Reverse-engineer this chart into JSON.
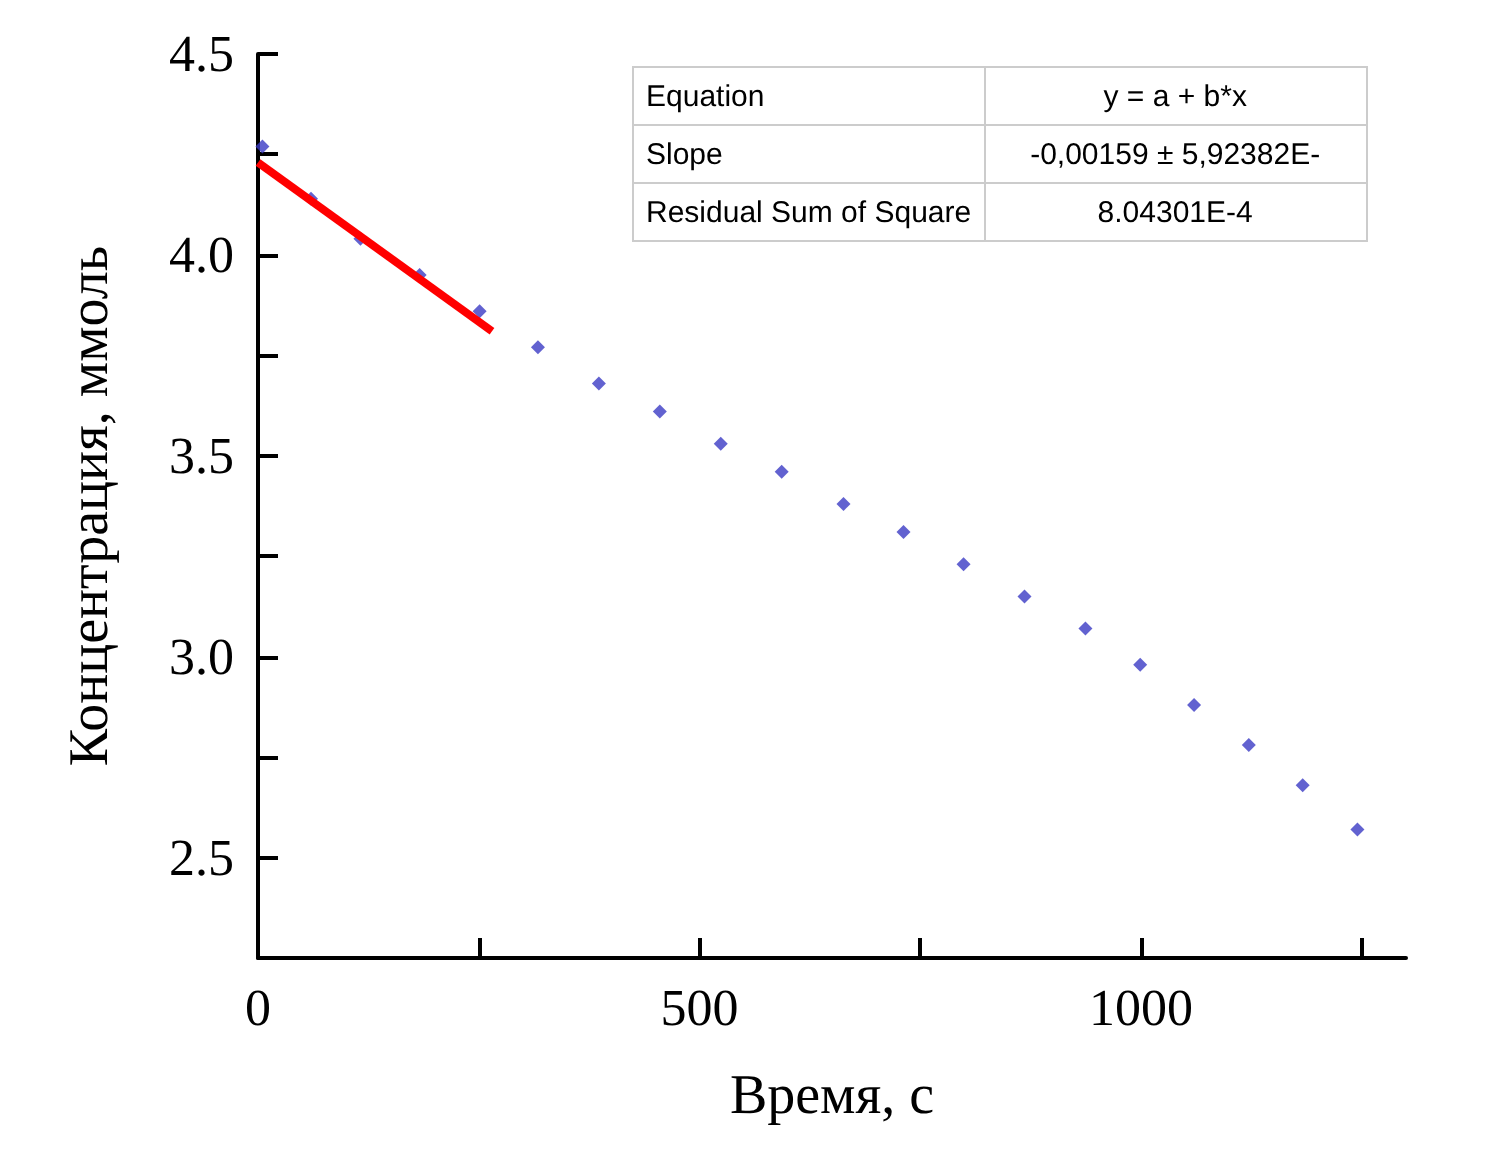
{
  "chart_data": {
    "type": "scatter",
    "xlabel": "Время, с",
    "ylabel": "Концентрация, ммоль",
    "x": [
      5,
      60,
      116,
      183,
      251,
      317,
      386,
      455,
      524,
      593,
      663,
      731,
      799,
      868,
      937,
      999,
      1060,
      1122,
      1183,
      1245
    ],
    "series": [
      {
        "color": "#3b3bc4",
        "marker": "diamond",
        "values": [
          4.27,
          4.14,
          4.04,
          3.95,
          3.86,
          3.77,
          3.68,
          3.61,
          3.53,
          3.46,
          3.38,
          3.31,
          3.23,
          3.15,
          3.07,
          2.98,
          2.88,
          2.78,
          2.68,
          2.57
        ]
      },
      {
        "type": "line",
        "color": "#ff0000",
        "marker": "none",
        "x": [
          0,
          265
        ],
        "values": [
          4.23,
          3.81
        ]
      }
    ],
    "xlim": [
      0,
      1300
    ],
    "xticks": [
      0,
      {
        "value": 250,
        "label": null
      },
      500,
      {
        "value": 750,
        "label": null
      },
      1000,
      {
        "value": 1250,
        "label": null
      }
    ],
    "ylim": [
      2.25,
      4.5
    ],
    "yticks": [
      {
        "value": 2.25,
        "label": null
      },
      2.5,
      {
        "value": 2.75,
        "label": null
      },
      {
        "value": 3,
        "label": "3.0"
      },
      {
        "value": 3.25,
        "label": null
      },
      3.5,
      {
        "value": 3.75,
        "label": null
      },
      {
        "value": 4,
        "label": "4.0"
      },
      {
        "value": 4.25,
        "label": null
      },
      4.5
    ],
    "annotations": [
      "Equation",
      "y = a + b*x",
      "Slope",
      "-0,00159 ± 5,92382E-",
      "Residual Sum of Square",
      "8.04301E-4"
    ],
    "grid": false
  }
}
